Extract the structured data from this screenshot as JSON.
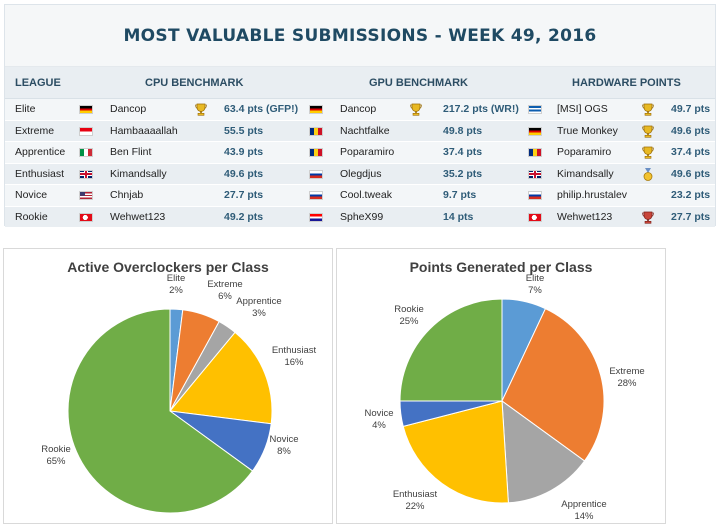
{
  "title": "MOST VALUABLE SUBMISSIONS - WEEK 49, 2016",
  "headers": {
    "league": "LEAGUE",
    "cpu": "CPU BENCHMARK",
    "gpu": "GPU BENCHMARK",
    "hw": "HARDWARE POINTS"
  },
  "rows": [
    {
      "league": "Elite",
      "cpu": {
        "flag": "germany",
        "name": "Dancop",
        "pts": "63.4 pts (GFP!)",
        "trophy": "gold-trophy"
      },
      "gpu": {
        "flag": "germany",
        "name": "Dancop",
        "pts": "217.2 pts (WR!)",
        "trophy": "gold-trophy"
      },
      "hw": {
        "flag": "greece",
        "name": "[MSI] OGS",
        "pts": "49.7 pts",
        "trophy": "gold-trophy"
      }
    },
    {
      "league": "Extreme",
      "cpu": {
        "flag": "indonesia",
        "name": "Hambaaaallah",
        "pts": "55.5 pts",
        "trophy": ""
      },
      "gpu": {
        "flag": "romania",
        "name": "Nachtfalke",
        "pts": "49.8 pts",
        "trophy": ""
      },
      "hw": {
        "flag": "germany",
        "name": "True Monkey",
        "pts": "49.6 pts",
        "trophy": "gold-trophy"
      }
    },
    {
      "league": "Apprentice",
      "cpu": {
        "flag": "italy",
        "name": "Ben Flint",
        "pts": "43.9 pts",
        "trophy": ""
      },
      "gpu": {
        "flag": "romania",
        "name": "Poparamiro",
        "pts": "37.4 pts",
        "trophy": ""
      },
      "hw": {
        "flag": "romania",
        "name": "Poparamiro",
        "pts": "37.4 pts",
        "trophy": "gold-trophy"
      }
    },
    {
      "league": "Enthusiast",
      "cpu": {
        "flag": "united-kingdom",
        "name": "Kimandsally",
        "pts": "49.6 pts",
        "trophy": ""
      },
      "gpu": {
        "flag": "russia",
        "name": "Olegdjus",
        "pts": "35.2 pts",
        "trophy": ""
      },
      "hw": {
        "flag": "united-kingdom",
        "name": "Kimandsally",
        "pts": "49.6 pts",
        "trophy": "gold-medal"
      }
    },
    {
      "league": "Novice",
      "cpu": {
        "flag": "united-states",
        "name": "Chnjab",
        "pts": "27.7 pts",
        "trophy": ""
      },
      "gpu": {
        "flag": "russia",
        "name": "Cool.tweak",
        "pts": "9.7 pts",
        "trophy": ""
      },
      "hw": {
        "flag": "russia",
        "name": "philip.hrustalev",
        "pts": "23.2 pts",
        "trophy": ""
      }
    },
    {
      "league": "Rookie",
      "cpu": {
        "flag": "turkey",
        "name": "Wehwet123",
        "pts": "49.2 pts",
        "trophy": ""
      },
      "gpu": {
        "flag": "croatia",
        "name": "SpheX99",
        "pts": "14 pts",
        "trophy": ""
      },
      "hw": {
        "flag": "turkey",
        "name": "Wehwet123",
        "pts": "27.7 pts",
        "trophy": "red-trophy"
      }
    }
  ],
  "chart_data": [
    {
      "type": "pie",
      "title": "Active Overclockers per Class",
      "categories": [
        "Elite",
        "Extreme",
        "Apprentice",
        "Enthusiast",
        "Novice",
        "Rookie"
      ],
      "values": [
        2,
        6,
        3,
        16,
        8,
        65
      ],
      "labels": [
        "2%",
        "6%",
        "3%",
        "16%",
        "8%",
        "65%"
      ],
      "colors": [
        "#5b9bd5",
        "#ed7d31",
        "#a5a5a5",
        "#ffc000",
        "#4472c4",
        "#70ad47"
      ],
      "legend": "none"
    },
    {
      "type": "pie",
      "title": "Points Generated per Class",
      "categories": [
        "Elite",
        "Extreme",
        "Apprentice",
        "Enthusiast",
        "Novice",
        "Rookie"
      ],
      "values": [
        7,
        28,
        14,
        22,
        4,
        25
      ],
      "labels": [
        "7%",
        "28%",
        "14%",
        "22%",
        "4%",
        "25%"
      ],
      "colors": [
        "#5b9bd5",
        "#ed7d31",
        "#a5a5a5",
        "#ffc000",
        "#4472c4",
        "#70ad47"
      ],
      "legend": "none"
    }
  ]
}
